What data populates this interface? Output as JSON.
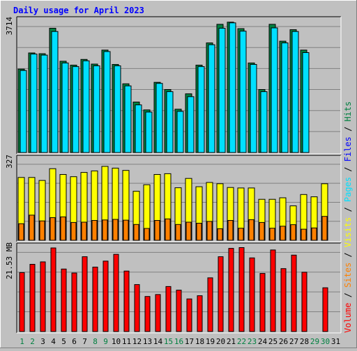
{
  "chart_data": {
    "type": "bar",
    "title": "Daily usage for April 2023",
    "categories": [
      "1",
      "2",
      "3",
      "4",
      "5",
      "6",
      "7",
      "8",
      "9",
      "10",
      "11",
      "12",
      "13",
      "14",
      "15",
      "16",
      "17",
      "18",
      "19",
      "20",
      "21",
      "22",
      "23",
      "24",
      "25",
      "26",
      "27",
      "28",
      "29",
      "30",
      "31"
    ],
    "weekend_days": [
      "1",
      "2",
      "8",
      "9",
      "15",
      "16",
      "22",
      "23",
      "29",
      "30"
    ],
    "panels": [
      {
        "id": "hits-pages",
        "max_label": "3714",
        "ylim": [
          0,
          3714
        ],
        "series": [
          {
            "name": "Hits",
            "color": "#008040",
            "values": [
              2330,
              2780,
              2760,
              3470,
              2550,
              2440,
              2600,
              2470,
              2860,
              2460,
              1920,
              1410,
              1190,
              1960,
              1760,
              1210,
              1640,
              2440,
              3060,
              3580,
              3640,
              3460,
              2500,
              1760,
              3580,
              3110,
              3430,
              2860,
              null,
              null,
              null
            ]
          },
          {
            "name": "Pages",
            "color": "#00e0ff",
            "values": [
              2290,
              2750,
              2720,
              3380,
              2500,
              2400,
              2560,
              2420,
              2820,
              2420,
              1860,
              1330,
              1130,
              1930,
              1700,
              1150,
              1560,
              2400,
              3010,
              3470,
              3620,
              3390,
              2460,
              1700,
              3480,
              3060,
              3380,
              2790,
              null,
              null,
              null
            ]
          }
        ]
      },
      {
        "id": "visits-sites",
        "max_label": "327",
        "ylim": [
          0,
          327
        ],
        "series": [
          {
            "name": "Visits",
            "color": "#ffff00",
            "values": [
              250,
              250,
              238,
              285,
              262,
              253,
              270,
              276,
              294,
              287,
              278,
              195,
              221,
              262,
              265,
              209,
              246,
              213,
              230,
              225,
              210,
              208,
              208,
              163,
              163,
              169,
              137,
              182,
              173,
              225,
              null
            ]
          },
          {
            "name": "Sites",
            "color": "#ff8000",
            "values": [
              66,
              100,
              77,
              90,
              93,
              71,
              72,
              79,
              81,
              83,
              80,
              63,
              47,
              79,
              85,
              63,
              72,
              68,
              75,
              46,
              79,
              48,
              82,
              71,
              48,
              56,
              62,
              44,
              49,
              95,
              null
            ]
          }
        ]
      },
      {
        "id": "volume",
        "max_label": "21.53 MB",
        "ylim": [
          0,
          21.53
        ],
        "series": [
          {
            "name": "Volume",
            "color": "#ff0000",
            "values": [
              14.8,
              16.9,
              17.5,
              21.0,
              15.7,
              14.7,
              18.8,
              16.2,
              17.7,
              19.4,
              15.2,
              11.8,
              8.8,
              9.3,
              11.3,
              10.4,
              8.2,
              9.0,
              13.5,
              18.8,
              20.9,
              21.1,
              18.5,
              14.6,
              20.5,
              15.8,
              19.2,
              14.9,
              null,
              11.0,
              null
            ]
          }
        ]
      }
    ],
    "legend": [
      {
        "text": "Volume",
        "color": "#ff0000"
      },
      {
        "text": " / ",
        "color": "#000000"
      },
      {
        "text": "Sites",
        "color": "#ff8000"
      },
      {
        "text": " / ",
        "color": "#000000"
      },
      {
        "text": "Visits",
        "color": "#ffff00"
      },
      {
        "text": " / ",
        "color": "#000000"
      },
      {
        "text": "Pages",
        "color": "#00e0ff"
      },
      {
        "text": " / ",
        "color": "#000000"
      },
      {
        "text": "Files",
        "color": "#0000ff"
      },
      {
        "text": " / ",
        "color": "#000000"
      },
      {
        "text": "Hits",
        "color": "#008040"
      }
    ],
    "legend_position": "right, vertical",
    "grid": true,
    "colors": {
      "background": "#c0c0c0",
      "title": "#0000ff",
      "weekday_label": "#000000",
      "weekend_label": "#008040"
    }
  }
}
